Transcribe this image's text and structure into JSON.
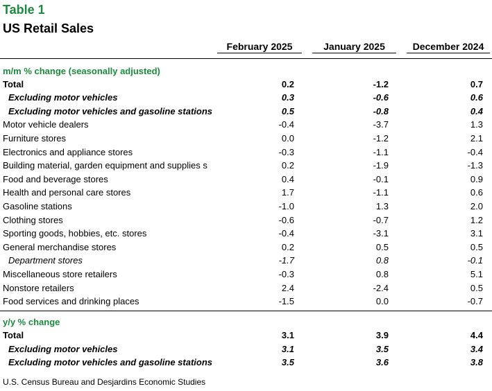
{
  "header": {
    "table_label": "Table 1",
    "title": "US Retail Sales"
  },
  "columns": [
    "February 2025",
    "January 2025",
    "December 2024"
  ],
  "sections": [
    {
      "title": "m/m % change (seasonally adjusted)",
      "rows": [
        {
          "label": "Total",
          "values": [
            "0.2",
            "-1.2",
            "0.7"
          ],
          "style": "bold"
        },
        {
          "label": "Excluding motor vehicles",
          "values": [
            "0.3",
            "-0.6",
            "0.6"
          ],
          "style": "bold-italic"
        },
        {
          "label": "Excluding motor vehicles and gasoline stations",
          "values": [
            "0.5",
            "-0.8",
            "0.4"
          ],
          "style": "bold-italic"
        },
        {
          "label": "Motor vehicle dealers",
          "values": [
            "-0.4",
            "-3.7",
            "1.3"
          ],
          "style": "normal"
        },
        {
          "label": "Furniture stores",
          "values": [
            "0.0",
            "-1.2",
            "2.1"
          ],
          "style": "normal"
        },
        {
          "label": "Electronics and appliance stores",
          "values": [
            "-0.3",
            "-1.1",
            "-0.4"
          ],
          "style": "normal"
        },
        {
          "label": "Building material, garden equipment and supplies s",
          "values": [
            "0.2",
            "-1.9",
            "-1.3"
          ],
          "style": "normal"
        },
        {
          "label": "Food and beverage stores",
          "values": [
            "0.4",
            "-0.1",
            "0.9"
          ],
          "style": "normal"
        },
        {
          "label": "Health and personal care stores",
          "values": [
            "1.7",
            "-1.1",
            "0.6"
          ],
          "style": "normal"
        },
        {
          "label": "Gasoline stations",
          "values": [
            "-1.0",
            "1.3",
            "2.0"
          ],
          "style": "normal"
        },
        {
          "label": "Clothing stores",
          "values": [
            "-0.6",
            "-0.7",
            "1.2"
          ],
          "style": "normal"
        },
        {
          "label": "Sporting goods, hobbies, etc. stores",
          "values": [
            "-0.4",
            "-3.1",
            "3.1"
          ],
          "style": "normal"
        },
        {
          "label": "General merchandise stores",
          "values": [
            "0.2",
            "0.5",
            "0.5"
          ],
          "style": "normal"
        },
        {
          "label": "Department stores",
          "values": [
            "-1.7",
            "0.8",
            "-0.1"
          ],
          "style": "italic"
        },
        {
          "label": "Miscellaneous store retailers",
          "values": [
            "-0.3",
            "0.8",
            "5.1"
          ],
          "style": "normal"
        },
        {
          "label": "Nonstore retailers",
          "values": [
            "2.4",
            "-2.4",
            "0.5"
          ],
          "style": "normal"
        },
        {
          "label": "Food services and drinking places",
          "values": [
            "-1.5",
            "0.0",
            "-0.7"
          ],
          "style": "normal"
        }
      ]
    },
    {
      "title": "y/y % change",
      "rows": [
        {
          "label": "Total",
          "values": [
            "3.1",
            "3.9",
            "4.4"
          ],
          "style": "bold"
        },
        {
          "label": "Excluding motor vehicles",
          "values": [
            "3.1",
            "3.5",
            "3.4"
          ],
          "style": "bold-italic"
        },
        {
          "label": "Excluding motor vehicles and gasoline stations",
          "values": [
            "3.5",
            "3.6",
            "3.8"
          ],
          "style": "bold-italic"
        }
      ]
    }
  ],
  "source": "U.S. Census Bureau and Desjardins Economic Studies"
}
